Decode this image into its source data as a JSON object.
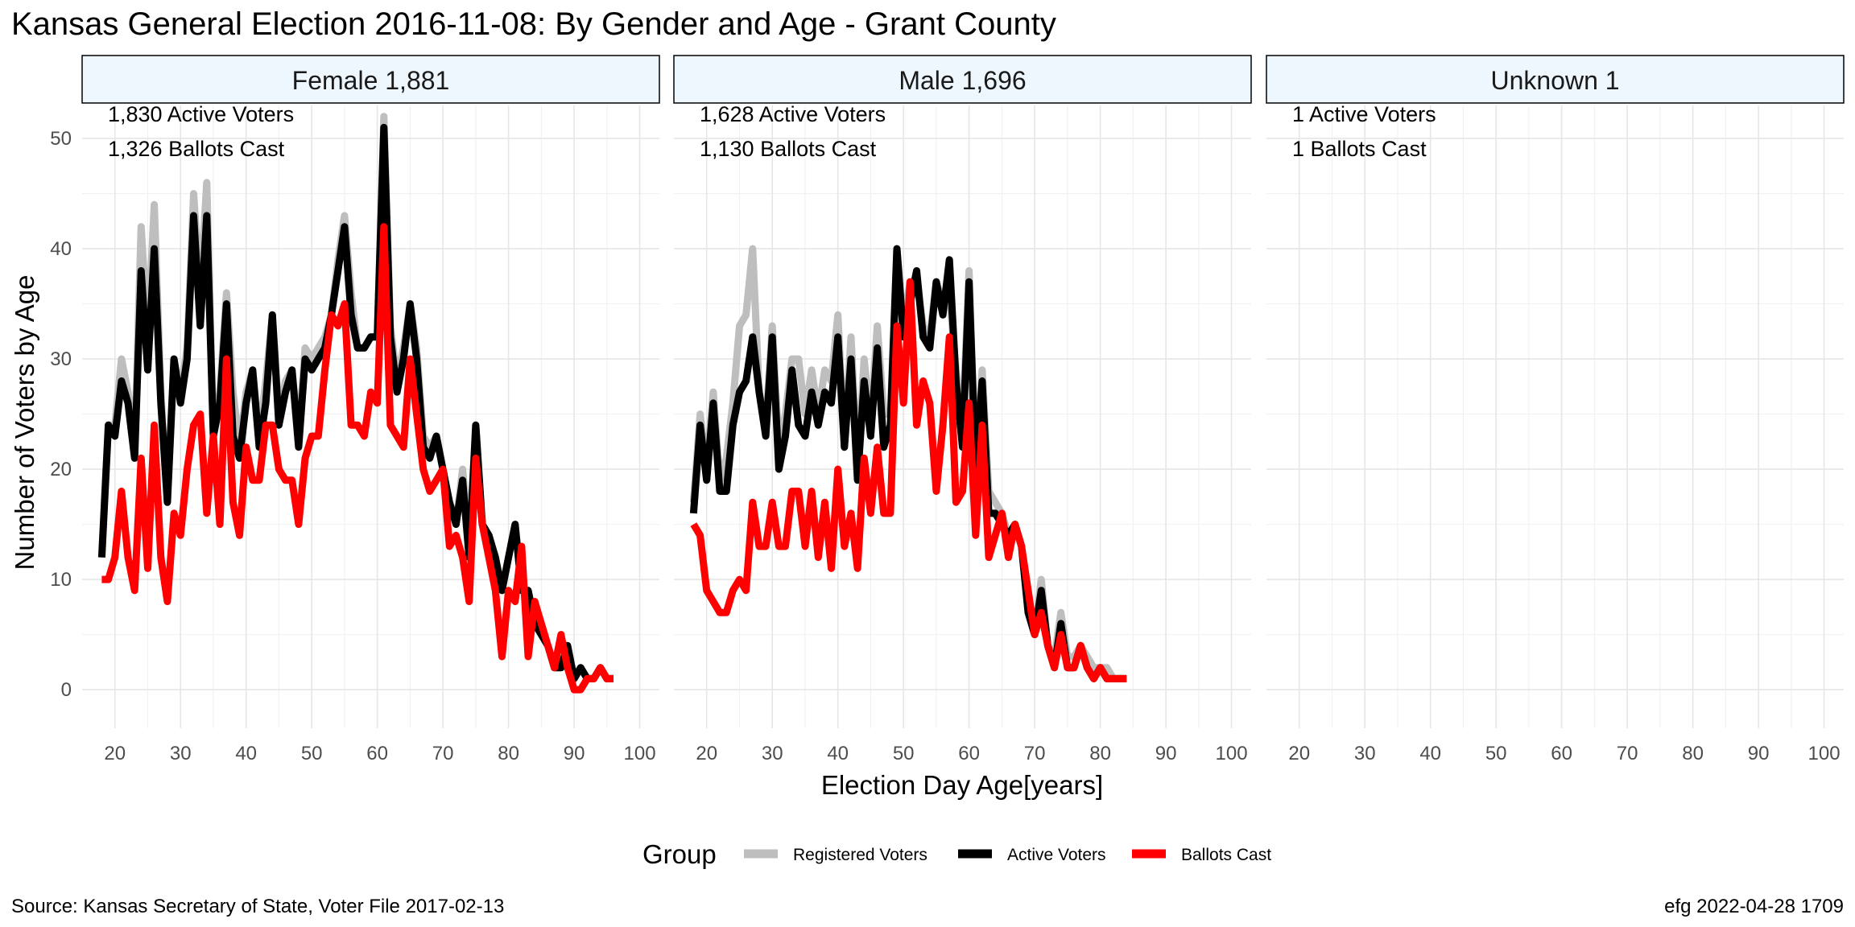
{
  "chart_data": {
    "type": "line",
    "title": "Kansas General Election 2016-11-08:  By Gender and Age - Grant County",
    "xlabel": "Election Day Age[years]",
    "ylabel": "Number of Voters by Age",
    "xlim": [
      15,
      103
    ],
    "ylim": [
      -3.5,
      53
    ],
    "x_ticks": [
      20,
      30,
      40,
      50,
      60,
      70,
      80,
      90,
      100
    ],
    "y_ticks": [
      0,
      10,
      20,
      30,
      40,
      50
    ],
    "grid": true,
    "legend": {
      "title": "Group",
      "position": "bottom",
      "entries": [
        "Registered Voters",
        "Active Voters",
        "Ballots Cast"
      ]
    },
    "colors": {
      "Registered Voters": "#bebebe",
      "Active Voters": "#000000",
      "Ballots Cast": "#ff0000",
      "strip_fill": "#eef7fd"
    },
    "caption_left": "Source:  Kansas Secretary of State, Voter File  2017-02-13",
    "caption_right": "efg 2022-04-28 1709",
    "panels": [
      {
        "label": "Female 1,881",
        "annotations": [
          "1,830 Active Voters",
          "1,326 Ballots Cast"
        ],
        "series": [
          {
            "name": "Registered Voters",
            "x_start": 18,
            "values": [
              12,
              24,
              24,
              30,
              27,
              22,
              42,
              32,
              44,
              27,
              17,
              30,
              27,
              31,
              45,
              36,
              46,
              23,
              27,
              36,
              27,
              22,
              27,
              29,
              23,
              28,
              34,
              25,
              28,
              29,
              23,
              31,
              30,
              31,
              32,
              34,
              39,
              43,
              36,
              31,
              31,
              32,
              32,
              52,
              33,
              28,
              31,
              35,
              31,
              23,
              22,
              23,
              20,
              17,
              15,
              20,
              13,
              24,
              15,
              14,
              12,
              9,
              12,
              15,
              9,
              9,
              6,
              5,
              4,
              2,
              2,
              4,
              1,
              2,
              1,
              1,
              2,
              1,
              1
            ]
          },
          {
            "name": "Active Voters",
            "x_start": 18,
            "values": [
              12,
              24,
              23,
              28,
              26,
              21,
              38,
              29,
              40,
              26,
              17,
              30,
              26,
              30,
              43,
              33,
              43,
              23,
              26,
              35,
              23,
              21,
              26,
              29,
              22,
              26,
              34,
              24,
              27,
              29,
              22,
              30,
              29,
              30,
              31,
              34,
              38,
              42,
              34,
              31,
              31,
              32,
              32,
              51,
              32,
              27,
              30,
              35,
              30,
              22,
              21,
              23,
              20,
              17,
              15,
              19,
              12,
              24,
              15,
              14,
              12,
              9,
              12,
              15,
              9,
              9,
              6,
              5,
              4,
              2,
              2,
              4,
              1,
              2,
              1,
              1,
              2,
              1,
              1
            ]
          },
          {
            "name": "Ballots Cast",
            "x_start": 18,
            "values": [
              10,
              10,
              12,
              18,
              12,
              9,
              21,
              11,
              24,
              12,
              8,
              16,
              14,
              20,
              24,
              25,
              16,
              23,
              15,
              30,
              17,
              14,
              22,
              19,
              19,
              24,
              24,
              20,
              19,
              19,
              15,
              21,
              23,
              23,
              29,
              34,
              33,
              35,
              24,
              24,
              23,
              27,
              26,
              42,
              24,
              23,
              22,
              30,
              25,
              20,
              18,
              19,
              20,
              13,
              14,
              12,
              8,
              21,
              15,
              12,
              9,
              3,
              9,
              8,
              13,
              3,
              8,
              6,
              4,
              2,
              5,
              2,
              0,
              0,
              1,
              1,
              2,
              1,
              1
            ]
          }
        ]
      },
      {
        "label": "Male 1,696",
        "annotations": [
          "1,628 Active Voters",
          "1,130 Ballots Cast"
        ],
        "series": [
          {
            "name": "Registered Voters",
            "x_start": 18,
            "values": [
              17,
              25,
              20,
              27,
              19,
              21,
              26,
              33,
              34,
              40,
              27,
              24,
              33,
              22,
              25,
              30,
              30,
              25,
              29,
              25,
              29,
              28,
              34,
              22,
              32,
              20,
              30,
              24,
              33,
              25,
              25,
              40,
              33,
              37,
              37,
              33,
              32,
              37,
              35,
              36,
              29,
              24,
              38,
              20,
              29,
              18,
              17,
              16,
              14,
              15,
              13,
              8,
              5,
              10,
              4,
              3,
              7,
              3,
              3,
              4,
              3,
              2,
              2,
              2,
              1,
              1,
              1
            ]
          },
          {
            "name": "Active Voters",
            "x_start": 18,
            "values": [
              16,
              24,
              19,
              26,
              18,
              18,
              24,
              27,
              28,
              32,
              27,
              23,
              32,
              20,
              23,
              29,
              24,
              23,
              27,
              24,
              27,
              26,
              32,
              22,
              30,
              19,
              28,
              23,
              31,
              22,
              24,
              40,
              32,
              35,
              38,
              32,
              31,
              37,
              34,
              39,
              28,
              22,
              37,
              20,
              28,
              16,
              16,
              15,
              14,
              15,
              13,
              7,
              5,
              9,
              4,
              2,
              6,
              2,
              2,
              4,
              2,
              1,
              2,
              1,
              1,
              1,
              1
            ]
          },
          {
            "name": "Ballots Cast",
            "x_start": 18,
            "values": [
              15,
              14,
              9,
              8,
              7,
              7,
              9,
              10,
              9,
              17,
              13,
              13,
              17,
              13,
              13,
              18,
              18,
              13,
              18,
              12,
              17,
              11,
              20,
              13,
              16,
              11,
              21,
              16,
              22,
              16,
              16,
              33,
              26,
              37,
              24,
              28,
              26,
              18,
              24,
              32,
              17,
              18,
              26,
              14,
              24,
              12,
              14,
              16,
              12,
              15,
              13,
              9,
              5,
              7,
              4,
              2,
              5,
              2,
              2,
              4,
              2,
              1,
              2,
              1,
              1,
              1,
              1
            ]
          }
        ]
      },
      {
        "label": "Unknown 1",
        "annotations": [
          "1 Active Voters",
          "1 Ballots Cast"
        ],
        "series": []
      }
    ]
  }
}
